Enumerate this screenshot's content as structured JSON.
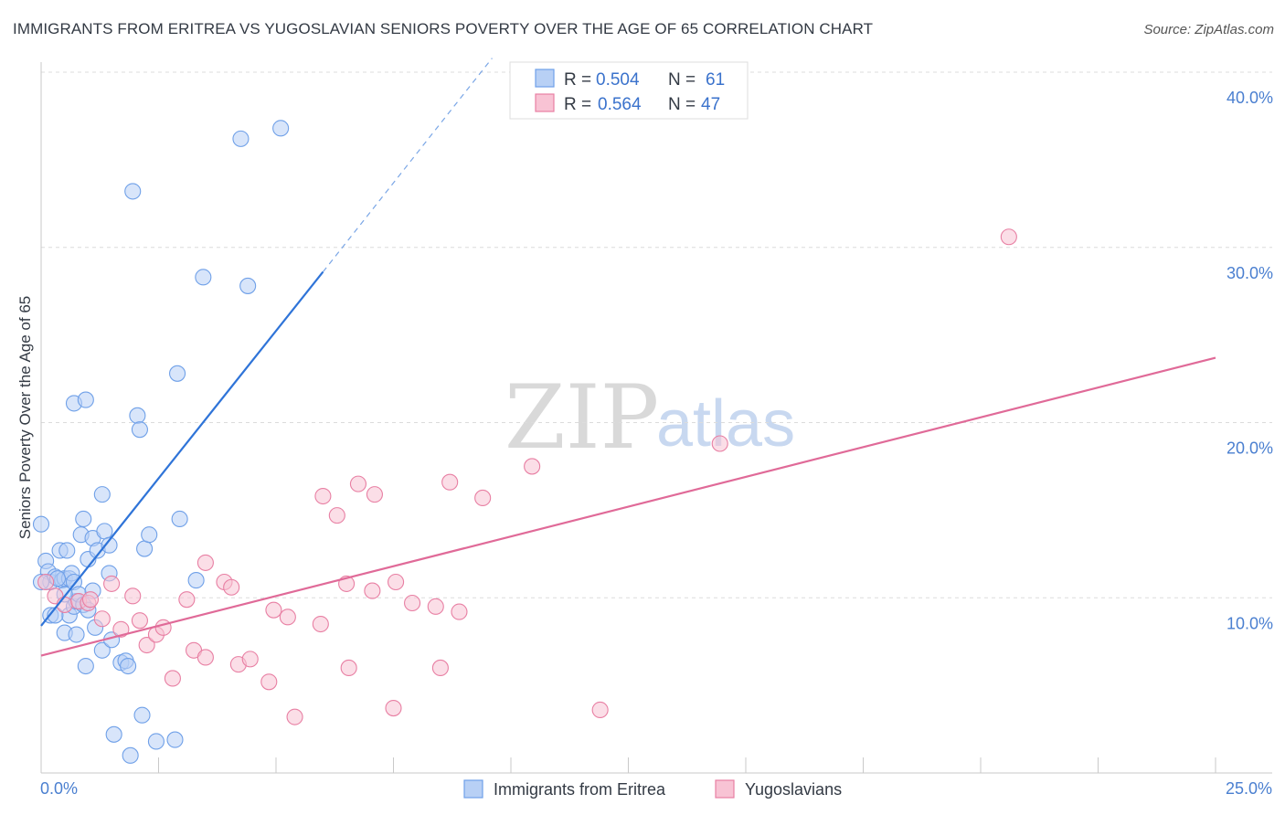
{
  "header": {
    "title": "IMMIGRANTS FROM ERITREA VS YUGOSLAVIAN SENIORS POVERTY OVER THE AGE OF 65 CORRELATION CHART",
    "source": "Source: ZipAtlas.com"
  },
  "watermark": {
    "zip": "ZIP",
    "atlas": "atlas"
  },
  "legend": {
    "r_label": "R =",
    "n_label": "N =",
    "items": [
      {
        "name": "Immigrants from Eritrea",
        "r": "0.504",
        "n": "61",
        "color": "#6fa0e8",
        "fill": "#b8d0f5"
      },
      {
        "name": "Yugoslavians",
        "r": "0.564",
        "n": "47",
        "color": "#e87fa3",
        "fill": "#f8c3d4"
      }
    ]
  },
  "chart_data": {
    "type": "scatter",
    "title": "IMMIGRANTS FROM ERITREA VS YUGOSLAVIAN SENIORS POVERTY OVER THE AGE OF 65 CORRELATION CHART",
    "xlabel": "",
    "ylabel": "Seniors Poverty Over the Age of 65",
    "xlim": [
      0,
      25
    ],
    "ylim": [
      0,
      40
    ],
    "x_tick_labels": [
      "0.0%",
      "25.0%"
    ],
    "y_tick_values": [
      10,
      20,
      30,
      40
    ],
    "y_tick_labels": [
      "10.0%",
      "20.0%",
      "30.0%",
      "40.0%"
    ],
    "series": [
      {
        "name": "Immigrants from Eritrea",
        "color": "#6fa0e8",
        "fill": "#b8d0f5",
        "trend": {
          "x0": 0,
          "y0": 8.4,
          "x1": 6.0,
          "y1": 28.6,
          "dash_x1": 9.6,
          "dash_y1": 40.8
        },
        "points": [
          [
            0.0,
            14.2
          ],
          [
            0.1,
            12.1
          ],
          [
            0.15,
            11.5
          ],
          [
            0.2,
            10.9
          ],
          [
            0.2,
            9.0
          ],
          [
            0.3,
            11.2
          ],
          [
            0.4,
            12.7
          ],
          [
            0.45,
            11.0
          ],
          [
            0.5,
            11.1
          ],
          [
            0.5,
            8.0
          ],
          [
            0.55,
            12.7
          ],
          [
            0.6,
            11.1
          ],
          [
            0.6,
            9.0
          ],
          [
            0.65,
            11.4
          ],
          [
            0.7,
            10.9
          ],
          [
            0.7,
            9.5
          ],
          [
            0.75,
            9.8
          ],
          [
            0.75,
            7.9
          ],
          [
            0.8,
            10.2
          ],
          [
            0.85,
            13.6
          ],
          [
            0.9,
            14.5
          ],
          [
            0.9,
            9.6
          ],
          [
            0.95,
            6.1
          ],
          [
            1.0,
            9.3
          ],
          [
            1.0,
            12.2
          ],
          [
            1.1,
            13.4
          ],
          [
            1.1,
            10.4
          ],
          [
            1.15,
            8.3
          ],
          [
            1.2,
            12.7
          ],
          [
            1.3,
            7.0
          ],
          [
            1.3,
            15.9
          ],
          [
            1.35,
            13.8
          ],
          [
            1.45,
            13.0
          ],
          [
            1.45,
            11.4
          ],
          [
            1.5,
            7.6
          ],
          [
            1.55,
            2.2
          ],
          [
            1.7,
            6.3
          ],
          [
            1.8,
            6.4
          ],
          [
            1.85,
            6.1
          ],
          [
            1.9,
            1.0
          ],
          [
            1.95,
            33.2
          ],
          [
            2.05,
            20.4
          ],
          [
            2.1,
            19.6
          ],
          [
            2.15,
            3.3
          ],
          [
            2.2,
            12.8
          ],
          [
            2.3,
            13.6
          ],
          [
            2.45,
            1.8
          ],
          [
            2.85,
            1.9
          ],
          [
            2.9,
            22.8
          ],
          [
            2.95,
            14.5
          ],
          [
            3.3,
            11.0
          ],
          [
            3.45,
            28.3
          ],
          [
            4.25,
            36.2
          ],
          [
            4.4,
            27.8
          ],
          [
            5.1,
            36.8
          ],
          [
            0.0,
            10.9
          ],
          [
            0.3,
            9.0
          ],
          [
            0.35,
            11.1
          ],
          [
            0.7,
            21.1
          ],
          [
            0.95,
            21.3
          ],
          [
            0.5,
            10.2
          ]
        ]
      },
      {
        "name": "Yugoslavians",
        "color": "#e87fa3",
        "fill": "#f8c3d4",
        "trend": {
          "x0": 0,
          "y0": 6.7,
          "x1": 25,
          "y1": 23.7
        },
        "points": [
          [
            0.1,
            10.9
          ],
          [
            0.3,
            10.1
          ],
          [
            0.5,
            9.6
          ],
          [
            0.8,
            9.8
          ],
          [
            1.0,
            9.7
          ],
          [
            1.05,
            9.9
          ],
          [
            1.3,
            8.8
          ],
          [
            1.5,
            10.8
          ],
          [
            1.7,
            8.2
          ],
          [
            1.95,
            10.1
          ],
          [
            2.1,
            8.7
          ],
          [
            2.25,
            7.3
          ],
          [
            2.45,
            7.9
          ],
          [
            2.6,
            8.3
          ],
          [
            2.8,
            5.4
          ],
          [
            3.1,
            9.9
          ],
          [
            3.25,
            7.0
          ],
          [
            3.5,
            12.0
          ],
          [
            3.5,
            6.6
          ],
          [
            3.9,
            10.9
          ],
          [
            4.05,
            10.6
          ],
          [
            4.2,
            6.2
          ],
          [
            4.45,
            6.5
          ],
          [
            4.85,
            5.2
          ],
          [
            4.95,
            9.3
          ],
          [
            5.25,
            8.9
          ],
          [
            5.4,
            3.2
          ],
          [
            5.95,
            8.5
          ],
          [
            6.0,
            15.8
          ],
          [
            6.3,
            14.7
          ],
          [
            6.5,
            10.8
          ],
          [
            6.55,
            6.0
          ],
          [
            6.75,
            16.5
          ],
          [
            7.05,
            10.4
          ],
          [
            7.1,
            15.9
          ],
          [
            7.5,
            3.7
          ],
          [
            7.55,
            10.9
          ],
          [
            7.9,
            9.7
          ],
          [
            8.4,
            9.5
          ],
          [
            8.5,
            6.0
          ],
          [
            8.7,
            16.6
          ],
          [
            8.9,
            9.2
          ],
          [
            9.4,
            15.7
          ],
          [
            10.45,
            17.5
          ],
          [
            11.9,
            3.6
          ],
          [
            14.45,
            18.8
          ],
          [
            20.6,
            30.6
          ]
        ]
      }
    ]
  },
  "bottom_legend": {
    "items": [
      {
        "label": "Immigrants from Eritrea"
      },
      {
        "label": "Yugoslavians"
      }
    ]
  }
}
